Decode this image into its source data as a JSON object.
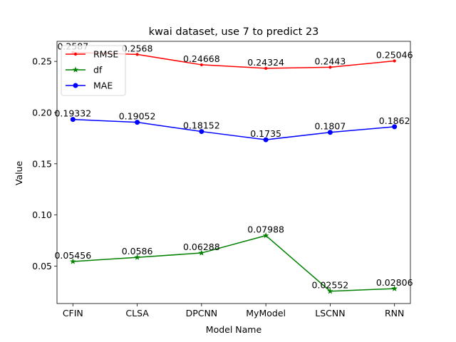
{
  "chart_data": {
    "type": "line",
    "title": "kwai dataset, use 7 to predict 23",
    "xlabel": "Model Name",
    "ylabel": "Value",
    "categories": [
      "CFIN",
      "CLSA",
      "DPCNN",
      "MyModel",
      "LSCNN",
      "RNN"
    ],
    "ylim": [
      0.0135,
      0.2696
    ],
    "yticks": [
      0.05,
      0.1,
      0.15,
      0.2,
      0.25
    ],
    "ytick_labels": [
      "0.05",
      "0.10",
      "0.15",
      "0.20",
      "0.25"
    ],
    "grid": false,
    "legend_position": "upper-left",
    "series": [
      {
        "name": "RMSE",
        "color": "#ff0000",
        "marker": "point",
        "values": [
          0.2587,
          0.2568,
          0.24668,
          0.24324,
          0.2443,
          0.25046
        ],
        "labels": [
          "0.2587",
          "0.2568",
          "0.24668",
          "0.24324",
          "0.2443",
          "0.25046"
        ]
      },
      {
        "name": "df",
        "color": "#008000",
        "marker": "star",
        "values": [
          0.05456,
          0.0586,
          0.06288,
          0.07988,
          0.02552,
          0.02806
        ],
        "labels": [
          "0.05456",
          "0.0586",
          "0.06288",
          "0.07988",
          "0.02552",
          "0.02806"
        ]
      },
      {
        "name": "MAE",
        "color": "#0000ff",
        "marker": "circle",
        "values": [
          0.19332,
          0.19052,
          0.18152,
          0.1735,
          0.1807,
          0.1862
        ],
        "labels": [
          "0.19332",
          "0.19052",
          "0.18152",
          "0.1735",
          "0.1807",
          "0.1862"
        ]
      }
    ]
  }
}
